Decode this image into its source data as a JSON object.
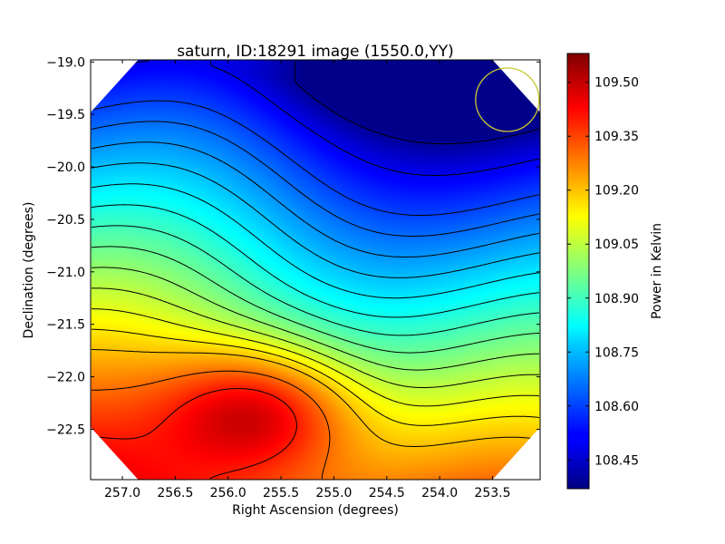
{
  "chart_data": {
    "type": "heatmap",
    "title": "saturn, ID:18291 image (1550.0,YY)",
    "xlabel": "Right Ascension (degrees)",
    "ylabel": "Declination (degrees)",
    "xlim": [
      257.3,
      253.05
    ],
    "ylim": [
      -22.98,
      -18.98
    ],
    "x_ticks": [
      257.0,
      256.5,
      256.0,
      255.5,
      255.0,
      254.5,
      254.0,
      253.5
    ],
    "x_tick_labels": [
      "257.0",
      "256.5",
      "256.0",
      "255.5",
      "255.0",
      "254.5",
      "254.0",
      "253.5"
    ],
    "y_ticks": [
      -19.0,
      -19.5,
      -20.0,
      -20.5,
      -21.0,
      -21.5,
      -22.0,
      -22.5
    ],
    "y_tick_labels": [
      "−19.0",
      "−19.5",
      "−20.0",
      "−20.5",
      "−21.0",
      "−21.5",
      "−22.0",
      "−22.5"
    ],
    "colorbar": {
      "label": "Power in Kelvin",
      "range": [
        108.37,
        109.58
      ],
      "ticks": [
        108.45,
        108.6,
        108.75,
        108.9,
        109.05,
        109.2,
        109.35,
        109.5
      ],
      "tick_labels": [
        "108.45",
        "108.60",
        "108.75",
        "108.90",
        "109.05",
        "109.20",
        "109.35",
        "109.50"
      ],
      "colormap": "jet"
    },
    "data_extent": {
      "description": "octagonal valid-data region; corners blank",
      "corner_cut_ra_width": 0.45,
      "corner_cut_dec_height": 0.5
    },
    "field": {
      "description": "smooth power map, gradient from low (top-right) to high (bottom-centre)",
      "max": {
        "ra": 255.7,
        "dec": -22.32,
        "value": 109.57
      },
      "min": {
        "ra": 254.0,
        "dec": -19.0,
        "value": 108.38
      }
    },
    "contour_levels": [
      108.4,
      108.5,
      108.6,
      108.65,
      108.7,
      108.75,
      108.8,
      108.85,
      108.9,
      108.95,
      109.0,
      109.05,
      109.1,
      109.15,
      109.2,
      109.3,
      109.4,
      109.5
    ],
    "marker": {
      "type": "circle",
      "ra": 253.36,
      "dec": -19.36,
      "radius_deg": 0.3,
      "color": "#c8c832"
    }
  }
}
